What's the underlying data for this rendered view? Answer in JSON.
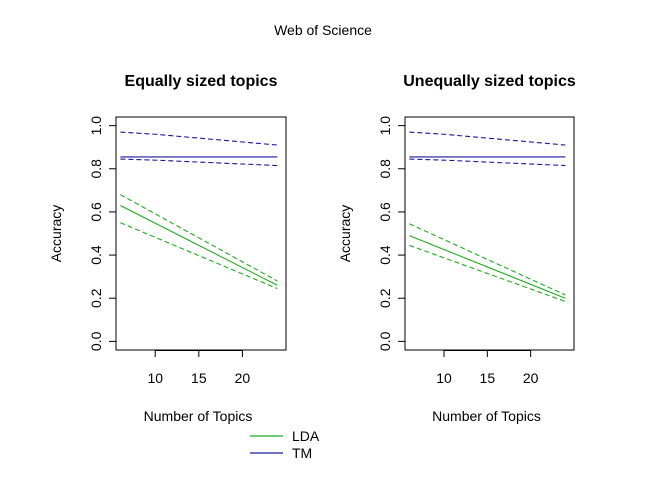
{
  "figure": {
    "title": "Web of Science",
    "legend": [
      {
        "label": "LDA",
        "color": "#22aa22"
      },
      {
        "label": "TM",
        "color": "#1a1a99"
      }
    ]
  },
  "chart_data": [
    {
      "type": "line",
      "title": "Equally sized topics",
      "xlabel": "Number of Topics",
      "ylabel": "Accuracy",
      "xlim": [
        5.5,
        25
      ],
      "ylim": [
        -0.04,
        1.04
      ],
      "xticks": [
        10,
        15,
        20
      ],
      "yticks": [
        0.0,
        0.2,
        0.4,
        0.6,
        0.8,
        1.0
      ],
      "yticklabels": [
        "0.0",
        "0.2",
        "0.4",
        "0.6",
        "0.8",
        "1.0"
      ],
      "series": [
        {
          "name": "LDA",
          "color": "#22aa22",
          "dash": false,
          "x": [
            6,
            24
          ],
          "y": [
            0.63,
            0.26
          ]
        },
        {
          "name": "",
          "color": "#22aa22",
          "dash": true,
          "x": [
            6,
            24
          ],
          "y": [
            0.68,
            0.28
          ]
        },
        {
          "name": "",
          "color": "#22aa22",
          "dash": true,
          "x": [
            6,
            24
          ],
          "y": [
            0.55,
            0.245
          ]
        },
        {
          "name": "TM",
          "color": "#1a1a99",
          "dash": false,
          "x": [
            6,
            24
          ],
          "y": [
            0.855,
            0.855
          ]
        },
        {
          "name": "",
          "color": "#1a1a99",
          "dash": true,
          "x": [
            6,
            10,
            24
          ],
          "y": [
            0.97,
            0.96,
            0.91
          ]
        },
        {
          "name": "",
          "color": "#1a1a99",
          "dash": true,
          "x": [
            6,
            10,
            24
          ],
          "y": [
            0.845,
            0.84,
            0.815
          ]
        }
      ]
    },
    {
      "type": "line",
      "title": "Unequally sized topics",
      "xlabel": "Number of Topics",
      "ylabel": "Accuracy",
      "xlim": [
        5.5,
        25
      ],
      "ylim": [
        -0.04,
        1.04
      ],
      "xticks": [
        10,
        15,
        20
      ],
      "yticks": [
        0.0,
        0.2,
        0.4,
        0.6,
        0.8,
        1.0
      ],
      "yticklabels": [
        "0.0",
        "0.2",
        "0.4",
        "0.6",
        "0.8",
        "1.0"
      ],
      "series": [
        {
          "name": "LDA",
          "color": "#22aa22",
          "dash": false,
          "x": [
            6,
            24
          ],
          "y": [
            0.49,
            0.2
          ]
        },
        {
          "name": "",
          "color": "#22aa22",
          "dash": true,
          "x": [
            6,
            24
          ],
          "y": [
            0.545,
            0.215
          ]
        },
        {
          "name": "",
          "color": "#22aa22",
          "dash": true,
          "x": [
            6,
            24
          ],
          "y": [
            0.445,
            0.185
          ]
        },
        {
          "name": "TM",
          "color": "#1a1a99",
          "dash": false,
          "x": [
            6,
            24
          ],
          "y": [
            0.855,
            0.855
          ]
        },
        {
          "name": "",
          "color": "#1a1a99",
          "dash": true,
          "x": [
            6,
            10,
            24
          ],
          "y": [
            0.97,
            0.96,
            0.91
          ]
        },
        {
          "name": "",
          "color": "#1a1a99",
          "dash": true,
          "x": [
            6,
            10,
            24
          ],
          "y": [
            0.845,
            0.84,
            0.815
          ]
        }
      ]
    }
  ]
}
